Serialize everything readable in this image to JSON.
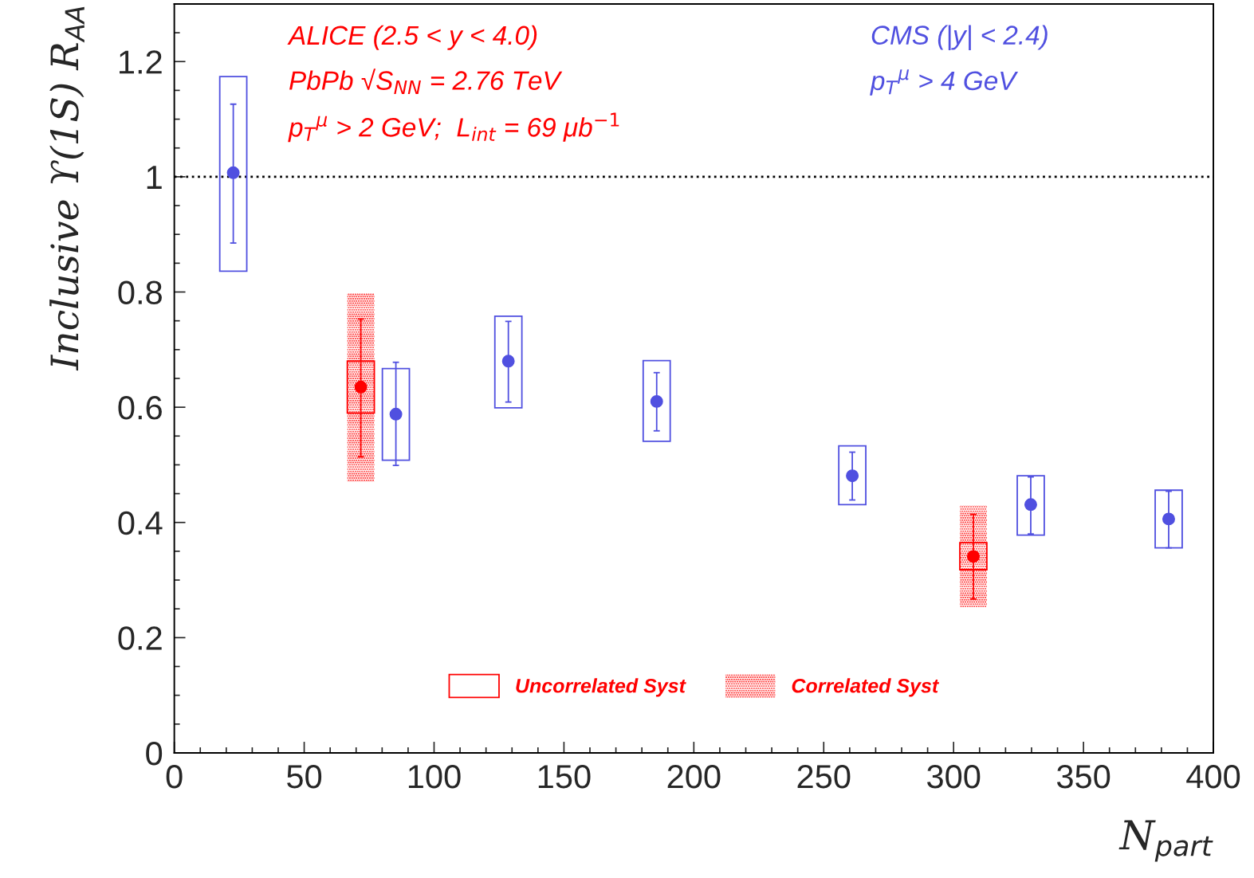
{
  "chart_data": {
    "type": "scatter",
    "xlabel": "N$_{part}$",
    "ylabel": "Inclusive ϒ(1S) R$_{AA}$",
    "xlim": [
      0,
      400
    ],
    "ylim": [
      0,
      1.3
    ],
    "xticks": [
      0,
      50,
      100,
      150,
      200,
      250,
      300,
      350,
      400
    ],
    "yticks": [
      0,
      0.2,
      0.4,
      0.6,
      0.8,
      1,
      1.2
    ],
    "series": [
      {
        "type": "bar",
        "color": "#5050e0",
        "line_style": "solid",
        "x": [
          22.7,
          85.3,
          128.6,
          185.7,
          261,
          329.7,
          382.8
        ],
        "base": [
          0.836,
          0.508,
          0.599,
          0.541,
          0.431,
          0.378,
          0.356
        ],
        "values": [
          0.338,
          0.159,
          0.159,
          0.14,
          0.102,
          0.103,
          0.1
        ]
      },
      {
        "color": "#5050e0",
        "x": [
          22.7,
          85.3,
          128.6,
          185.7,
          261,
          329.7,
          382.8
        ],
        "values": [
          1.007,
          0.588,
          0.68,
          0.61,
          0.481,
          0.431,
          0.406
        ],
        "errors": [
          [
            0.885,
            1.126
          ],
          [
            0.499,
            0.678
          ],
          [
            0.609,
            0.749
          ],
          [
            0.559,
            0.66
          ],
          [
            0.439,
            0.522
          ],
          [
            0.38,
            0.479
          ],
          [
            0.356,
            0.454
          ]
        ]
      },
      {
        "type": "bar",
        "name": "Correlated Syst",
        "color": "#ff0000",
        "line_style": "dotted",
        "x": [
          71.8,
          307.6
        ],
        "base": [
          0.471,
          0.253
        ],
        "values": [
          0.327,
          0.177
        ]
      },
      {
        "type": "bar",
        "name": "Uncorrelated Syst",
        "color": "#ff0000",
        "line_style": "solid",
        "x": [
          71.8,
          307.6
        ],
        "base": [
          0.59,
          0.318
        ],
        "values": [
          0.09,
          0.047
        ]
      },
      {
        "color": "#ff0000",
        "x": [
          71.8,
          307.6
        ],
        "values": [
          0.635,
          0.341
        ],
        "errors": [
          [
            0.514,
            0.753
          ],
          [
            0.267,
            0.414
          ]
        ]
      }
    ],
    "marker": "circle",
    "ref_lines": [
      {
        "axis": "y",
        "value": 1,
        "color": "#000000",
        "line_style": "dotted"
      }
    ],
    "annotations": [
      "ALICE (2.5 < y < 4.0)",
      "PbPb √S$_{NN}$ = 2.76 TeV",
      "p$_{T}$$^{μ}$ > 2 GeV;  L$_{int}$ = 69 μb$^{−1}$",
      "CMS (|y| < 2.4)",
      "p$_{T}$$^{μ}$ > 4 GeV"
    ],
    "legend": "bottom",
    "grid": false
  }
}
